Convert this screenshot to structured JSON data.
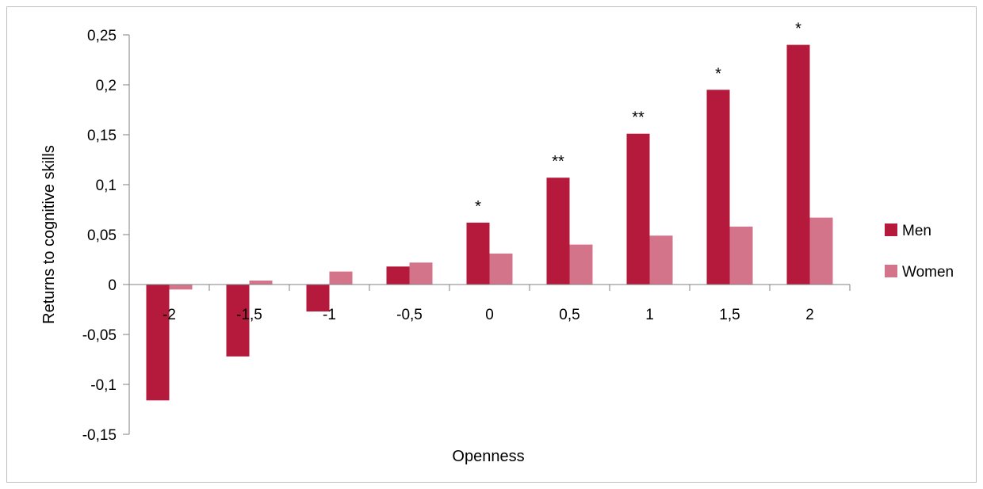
{
  "chart_data": {
    "type": "bar",
    "xlabel": "Openness",
    "ylabel": "Returns to cognitive skills",
    "categories": [
      "-2",
      "-1,5",
      "-1",
      "-0,5",
      "0",
      "0,5",
      "1",
      "1,5",
      "2"
    ],
    "series": [
      {
        "name": "Men",
        "color": "#b5193b",
        "values": [
          -0.116,
          -0.072,
          -0.027,
          0.018,
          0.062,
          0.107,
          0.151,
          0.195,
          0.24
        ]
      },
      {
        "name": "Women",
        "color": "#d4748a",
        "values": [
          -0.005,
          0.004,
          0.013,
          0.022,
          0.031,
          0.04,
          0.049,
          0.058,
          0.067
        ]
      }
    ],
    "significance": [
      "",
      "",
      "",
      "",
      "*",
      "**",
      "**",
      "*",
      "*"
    ],
    "ylim": [
      -0.15,
      0.25
    ],
    "yticks": [
      -0.15,
      -0.1,
      -0.05,
      0,
      0.05,
      0.1,
      0.15,
      0.2,
      0.25
    ],
    "ytick_labels": [
      "-0,15",
      "-0,1",
      "-0,05",
      "0",
      "0,05",
      "0,1",
      "0,15",
      "0,2",
      "0,25"
    ],
    "grid": false,
    "legend": "right"
  }
}
